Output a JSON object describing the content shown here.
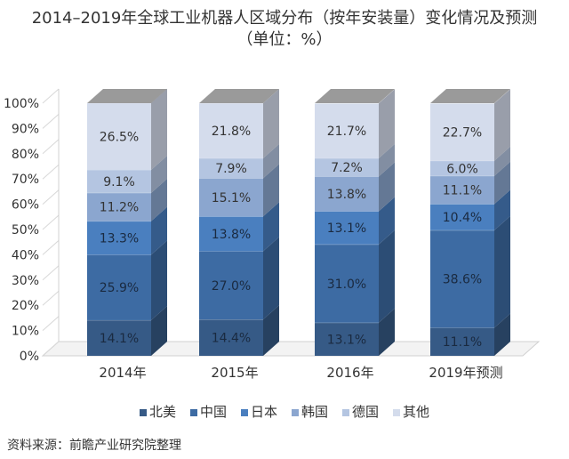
{
  "title_line1": "2014–2019年全球工业机器人区域分布（按年安装量）变化情况及预测",
  "title_line2": "（单位：%）",
  "source": "资料来源：前瞻产业研究院整理",
  "chart_data": {
    "type": "bar",
    "stacked": true,
    "three_d": true,
    "categories": [
      "2014年",
      "2015年",
      "2016年",
      "2019年预测"
    ],
    "series": [
      {
        "name": "北美",
        "color": "#365a86",
        "values": [
          14.1,
          14.4,
          13.1,
          11.1
        ],
        "labels": [
          "14.1%",
          "14.4%",
          "13.1%",
          "11.1%"
        ]
      },
      {
        "name": "中国",
        "color": "#3d6ba3",
        "values": [
          25.9,
          27.0,
          31.0,
          38.6
        ],
        "labels": [
          "25.9%",
          "27.0%",
          "31.0%",
          "38.6%"
        ]
      },
      {
        "name": "日本",
        "color": "#4a7fbf",
        "values": [
          13.3,
          13.8,
          13.1,
          10.4
        ],
        "labels": [
          "13.3%",
          "13.8%",
          "13.1%",
          "10.4%"
        ]
      },
      {
        "name": "韩国",
        "color": "#8ba6cf",
        "values": [
          11.2,
          15.1,
          13.8,
          11.1
        ],
        "labels": [
          "11.2%",
          "15.1%",
          "13.8%",
          "11.1%"
        ]
      },
      {
        "name": "德国",
        "color": "#b4c5e1",
        "values": [
          9.1,
          7.9,
          7.2,
          6.0
        ],
        "labels": [
          "9.1%",
          "7.9%",
          "7.2%",
          "6.0%"
        ]
      },
      {
        "name": "其他",
        "color": "#d4dcec",
        "values": [
          26.5,
          21.8,
          21.7,
          22.7
        ],
        "labels": [
          "26.5%",
          "21.8%",
          "21.7%",
          "22.7%"
        ]
      }
    ],
    "y_ticks": [
      "0%",
      "10%",
      "20%",
      "30%",
      "40%",
      "50%",
      "60%",
      "70%",
      "80%",
      "90%",
      "100%"
    ],
    "ylim": [
      0,
      100
    ],
    "legend_position": "bottom",
    "grid": false
  }
}
